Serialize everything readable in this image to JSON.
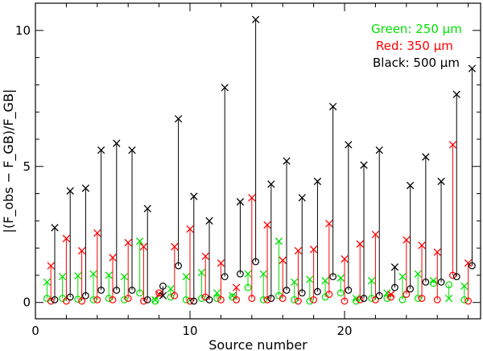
{
  "chart_data": {
    "type": "scatter",
    "xlabel": "Source number",
    "ylabel": "|(F_obs − F_GB)/F_GB|",
    "xlim": [
      0,
      28.8
    ],
    "ylim": [
      -0.6,
      11.0
    ],
    "xticks": [
      0,
      10,
      20
    ],
    "yticks": [
      0,
      5,
      10
    ],
    "grid": false,
    "legend": [
      {
        "text": "Green: 250 μm",
        "color": "#00e000"
      },
      {
        "text": "Red: 350 μm",
        "color": "#ff0000"
      },
      {
        "text": "Black: 500 μm",
        "color": "#000000"
      }
    ],
    "legend_placement": "top-right",
    "marker_note": "x = model value, o = measured value; vertical line joins them",
    "series": [
      {
        "name": "Green: 250 μm",
        "color": "#00e000",
        "source": [
          1,
          2,
          3,
          4,
          5,
          6,
          7,
          8,
          9,
          10,
          11,
          12,
          13,
          14,
          15,
          16,
          17,
          18,
          19,
          20,
          21,
          22,
          23,
          24,
          25,
          26,
          27,
          28
        ],
        "cross": [
          0.75,
          0.95,
          0.98,
          1.05,
          1.0,
          0.95,
          2.25,
          0.1,
          0.5,
          0.95,
          1.1,
          0.35,
          0.25,
          1.05,
          1.05,
          2.25,
          0.75,
          0.85,
          0.8,
          0.9,
          0.15,
          0.8,
          0.35,
          0.95,
          1.05,
          0.8,
          0.15,
          0.6
        ],
        "circle": [
          0.15,
          0.15,
          0.12,
          0.1,
          0.15,
          0.1,
          0.35,
          0.05,
          0.2,
          0.1,
          0.15,
          0.15,
          0.2,
          0.55,
          0.1,
          0.25,
          0.1,
          0.05,
          0.2,
          0.35,
          0.05,
          0.15,
          0.15,
          0.1,
          0.15,
          0.7,
          0.65,
          0.1
        ]
      },
      {
        "name": "Red: 350 μm",
        "color": "#ff0000",
        "source": [
          1,
          2,
          3,
          4,
          5,
          6,
          7,
          8,
          9,
          10,
          11,
          12,
          13,
          14,
          15,
          16,
          17,
          18,
          19,
          20,
          21,
          22,
          23,
          24,
          25,
          26,
          27,
          28
        ],
        "cross": [
          1.35,
          2.35,
          1.9,
          2.55,
          1.65,
          2.2,
          2.05,
          0.3,
          2.05,
          2.7,
          1.7,
          1.45,
          0.55,
          3.85,
          2.85,
          1.55,
          1.9,
          1.95,
          2.9,
          1.6,
          2.15,
          2.5,
          0.3,
          2.3,
          2.1,
          1.85,
          5.8,
          1.45
        ],
        "circle": [
          0.05,
          0.05,
          0.05,
          0.1,
          0.1,
          0.15,
          0.05,
          0.35,
          0.25,
          0.05,
          0.2,
          0.1,
          0.1,
          0.15,
          0.1,
          0.15,
          0.05,
          0.1,
          0.3,
          0.05,
          0.1,
          0.1,
          0.2,
          0.3,
          0.15,
          0.1,
          1.0,
          0.05
        ]
      },
      {
        "name": "Black: 500 μm",
        "color": "#000000",
        "source": [
          1,
          2,
          3,
          4,
          5,
          6,
          7,
          8,
          9,
          10,
          11,
          12,
          13,
          14,
          15,
          16,
          17,
          18,
          19,
          20,
          21,
          22,
          23,
          24,
          25,
          26,
          27,
          28
        ],
        "cross": [
          2.75,
          4.1,
          4.2,
          5.6,
          5.85,
          5.6,
          3.45,
          0.25,
          6.75,
          3.9,
          3.0,
          7.9,
          3.7,
          10.4,
          4.35,
          5.2,
          3.85,
          4.45,
          7.2,
          5.8,
          5.05,
          5.6,
          1.3,
          4.3,
          5.35,
          4.45,
          7.65,
          8.6
        ],
        "circle": [
          0.1,
          0.2,
          0.25,
          0.45,
          0.45,
          0.45,
          0.1,
          0.6,
          1.35,
          0.05,
          0.1,
          0.95,
          1.05,
          1.5,
          0.15,
          0.45,
          0.35,
          0.4,
          0.95,
          0.45,
          0.15,
          0.25,
          0.55,
          0.5,
          0.75,
          0.75,
          0.95,
          1.35
        ]
      }
    ]
  }
}
